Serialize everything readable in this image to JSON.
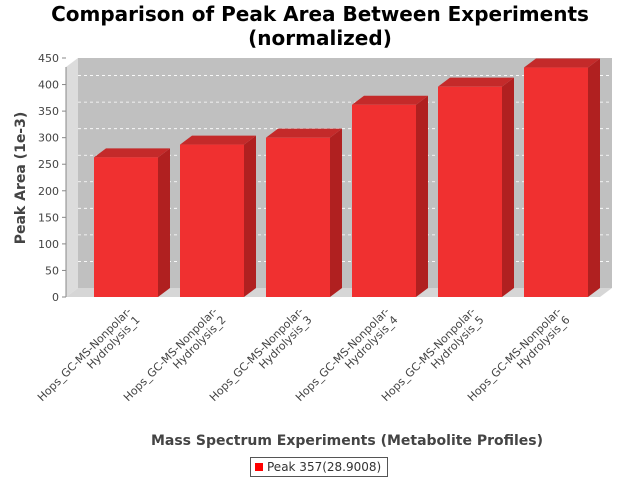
{
  "chart_data": {
    "type": "bar",
    "title_lines": [
      "Comparison of Peak Area Between Experiments",
      "(normalized)"
    ],
    "xlabel": "Mass Spectrum Experiments (Metabolite Profiles)",
    "ylabel": "Peak Area (1e-3)",
    "ylim": [
      0,
      450
    ],
    "yticks": [
      0,
      50,
      100,
      150,
      200,
      250,
      300,
      350,
      400,
      450
    ],
    "grid": true,
    "legend_position": "bottom",
    "categories": [
      [
        "Hops_GC-MS-Nonpolar-",
        "Hydrolysis_1"
      ],
      [
        "Hops_GC-MS-Nonpolar-",
        "Hydrolysis_2"
      ],
      [
        "Hops_GC-MS-Nonpolar-",
        "Hydrolysis_3"
      ],
      [
        "Hops_GC-MS-Nonpolar-",
        "Hydrolysis_4"
      ],
      [
        "Hops_GC-MS-Nonpolar-",
        "Hydrolysis_5"
      ],
      [
        "Hops_GC-MS-Nonpolar-",
        "Hydrolysis_6"
      ]
    ],
    "series": [
      {
        "name": "Peak 357(28.9008)",
        "color": "#ff0000",
        "values": [
          263,
          287,
          300,
          362,
          396,
          432
        ]
      }
    ]
  }
}
